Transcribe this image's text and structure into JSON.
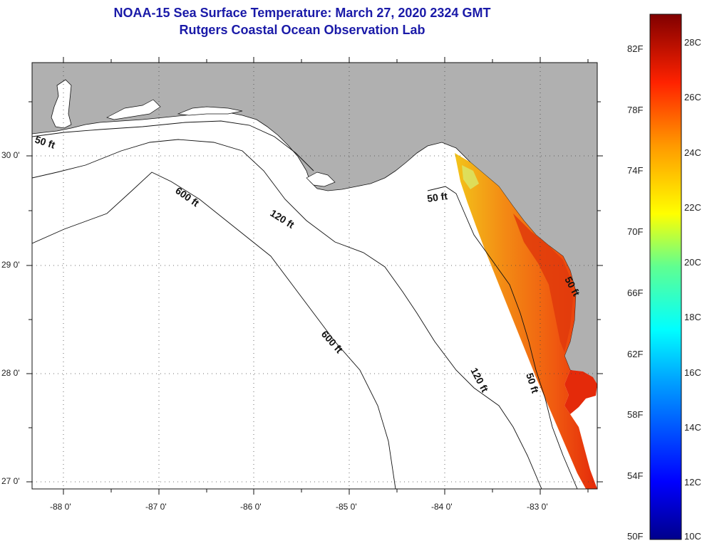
{
  "header": {
    "title": "NOAA-15 Sea Surface Temperature:  March 27, 2020 2324 GMT",
    "subtitle": "Rutgers Coastal Ocean Observation Lab"
  },
  "map": {
    "latitude_labels": [
      "30 0'",
      "29 0'",
      "28 0'",
      "27 0'"
    ],
    "longitude_labels": [
      "-88 0'",
      "-87 0'",
      "-86 0'",
      "-85 0'",
      "-84 0'",
      "-83 0'"
    ],
    "contour_labels": [
      "50 ft",
      "600 ft",
      "120 ft",
      "50 ft",
      "600 ft",
      "120 ft",
      "50 ft",
      "50 ft"
    ],
    "colors": {
      "land": "#b0b0b0",
      "ocean": "#ffffff",
      "sst_orange": "#f36a10",
      "sst_red": "#e42a0a",
      "sst_yellow": "#f3c41a"
    }
  },
  "colorbar": {
    "fahrenheit": [
      "82F",
      "78F",
      "74F",
      "70F",
      "66F",
      "62F",
      "58F",
      "54F",
      "50F"
    ],
    "celsius": [
      "28C",
      "26C",
      "24C",
      "22C",
      "20C",
      "18C",
      "16C",
      "14C",
      "12C",
      "10C"
    ]
  }
}
